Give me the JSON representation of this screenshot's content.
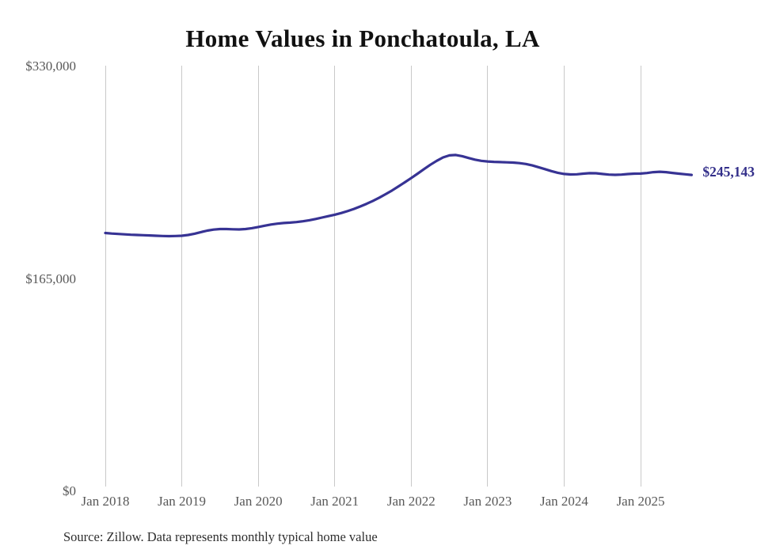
{
  "title": "Home Values in Ponchatoula, LA",
  "end_label": "$245,143",
  "source_note": "Source: Zillow. Data represents monthly typical home value",
  "colors": {
    "line": "#373394",
    "end_label": "#332f8a",
    "grid": "#c9c9c9",
    "axis_text": "#585858",
    "title_text": "#111111",
    "source_text": "#2e2e2e",
    "background": "#ffffff"
  },
  "chart_data": {
    "type": "line",
    "title": "Home Values in Ponchatoula, LA",
    "x_start": "Jan 2018",
    "x_end": "Sep 2025",
    "x_frequency": "monthly",
    "xlabel": "",
    "ylabel": "",
    "ylim": [
      0,
      330000
    ],
    "grid": "vertical",
    "legend": "none",
    "end_annotation": "$245,143",
    "y_ticks": [
      {
        "value": 0,
        "label": "$0"
      },
      {
        "value": 165000,
        "label": "$165,000"
      },
      {
        "value": 330000,
        "label": "$330,000"
      }
    ],
    "x_ticks": [
      {
        "month_index": 0,
        "label": "Jan 2018"
      },
      {
        "month_index": 12,
        "label": "Jan 2019"
      },
      {
        "month_index": 24,
        "label": "Jan 2020"
      },
      {
        "month_index": 36,
        "label": "Jan 2021"
      },
      {
        "month_index": 48,
        "label": "Jan 2022"
      },
      {
        "month_index": 60,
        "label": "Jan 2023"
      },
      {
        "month_index": 72,
        "label": "Jan 2024"
      },
      {
        "month_index": 84,
        "label": "Jan 2025"
      }
    ],
    "series": [
      {
        "name": "Typical home value (USD)",
        "values": [
          200000,
          199600,
          199300,
          199000,
          198700,
          198500,
          198300,
          198100,
          197900,
          197700,
          197600,
          197700,
          197900,
          198500,
          199500,
          200700,
          201900,
          202700,
          203100,
          203100,
          202900,
          202800,
          203100,
          203800,
          204700,
          205700,
          206600,
          207300,
          207800,
          208100,
          208500,
          209100,
          209900,
          210900,
          212000,
          213100,
          214200,
          215500,
          217000,
          218700,
          220600,
          222700,
          225000,
          227500,
          230200,
          233100,
          236200,
          239400,
          242700,
          246100,
          249600,
          253000,
          256100,
          258700,
          260300,
          260600,
          259700,
          258300,
          257000,
          256100,
          255600,
          255300,
          255100,
          254900,
          254700,
          254300,
          253600,
          252500,
          251100,
          249600,
          248100,
          246800,
          245900,
          245500,
          245600,
          246100,
          246500,
          246400,
          245900,
          245400,
          245200,
          245400,
          245800,
          246100,
          246200,
          246600,
          247300,
          247600,
          247300,
          246700,
          246100,
          245600,
          245143
        ]
      }
    ]
  }
}
